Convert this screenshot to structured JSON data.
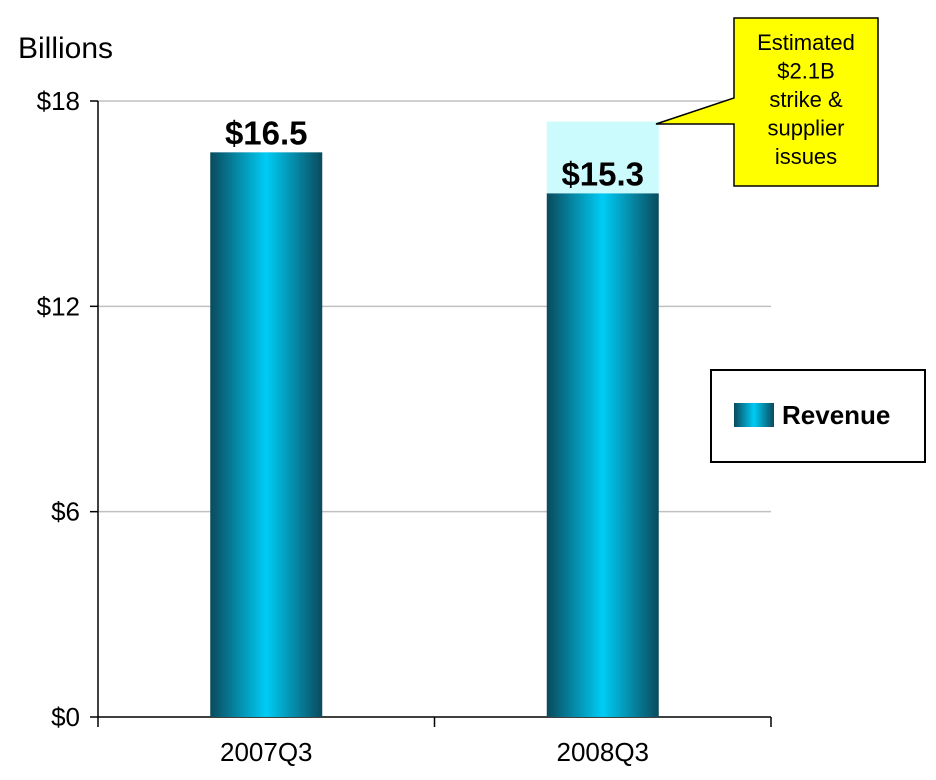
{
  "chart_data": {
    "type": "bar",
    "title": "",
    "unit_label": "Billions",
    "categories": [
      "2007Q3",
      "2008Q3"
    ],
    "series": [
      {
        "name": "Revenue",
        "values": [
          16.5,
          15.3
        ],
        "data_labels": [
          "$16.5",
          "$15.3"
        ]
      }
    ],
    "impact_segment": {
      "category": "2008Q3",
      "value": 2.1,
      "color": "#ccfbfd"
    },
    "ylim": [
      0,
      18
    ],
    "yticks": [
      {
        "value": 0,
        "label": "$0"
      },
      {
        "value": 6,
        "label": "$6"
      },
      {
        "value": 12,
        "label": "$12"
      },
      {
        "value": 18,
        "label": "$18"
      }
    ],
    "grid": true,
    "legend": {
      "position": "right",
      "entries": [
        "Revenue"
      ]
    },
    "annotation": {
      "lines": [
        "Estimated",
        "$2.1B",
        "strike &",
        "supplier",
        "issues"
      ],
      "fill": "#ffff00"
    },
    "colors": {
      "bar_edge": "#0a4a5c",
      "bar_center": "#00ccf5",
      "gridline": "#c0c0c0"
    }
  }
}
